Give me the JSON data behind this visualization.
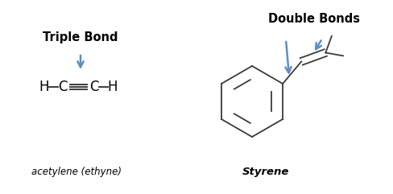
{
  "bg_color": "#ffffff",
  "title_left": "Triple Bond",
  "title_right": "Double Bonds",
  "label_left": "acetylene (ethyne)",
  "label_right": "Styrene",
  "arrow_color": "#5b8ec4",
  "bond_color": "#3a3a3a",
  "text_color": "#000000",
  "figsize": [
    4.88,
    2.41
  ],
  "dpi": 100
}
